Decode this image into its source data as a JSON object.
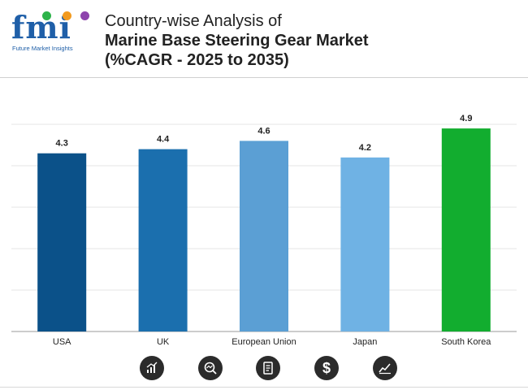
{
  "header": {
    "logo_text": "fmi",
    "logo_sub": "Future Market Insights",
    "title_line1": "Country-wise Analysis of",
    "title_line2": "Marine Base Steering Gear Market",
    "title_line3": "(%CAGR - 2025 to 2035)"
  },
  "colors": {
    "brand": "#1f5fa8",
    "logo_dots": [
      "#2db34a",
      "#f29a1f",
      "#8e44ad"
    ]
  },
  "footer_icons": [
    "bar-chart-icon",
    "search-analytics-icon",
    "report-icon",
    "dollar-icon",
    "trend-line-icon"
  ],
  "chart_data": {
    "type": "bar",
    "categories": [
      "USA",
      "UK",
      "European Union",
      "Japan",
      "South Korea"
    ],
    "values": [
      4.3,
      4.4,
      4.6,
      4.2,
      4.9
    ],
    "value_labels": [
      "4.3",
      "4.4",
      "4.6",
      "4.2",
      "4.9"
    ],
    "colors": [
      "#0b5189",
      "#1b6fae",
      "#5b9fd4",
      "#6fb2e4",
      "#12ad2f"
    ],
    "grid": true,
    "legend": "none"
  }
}
